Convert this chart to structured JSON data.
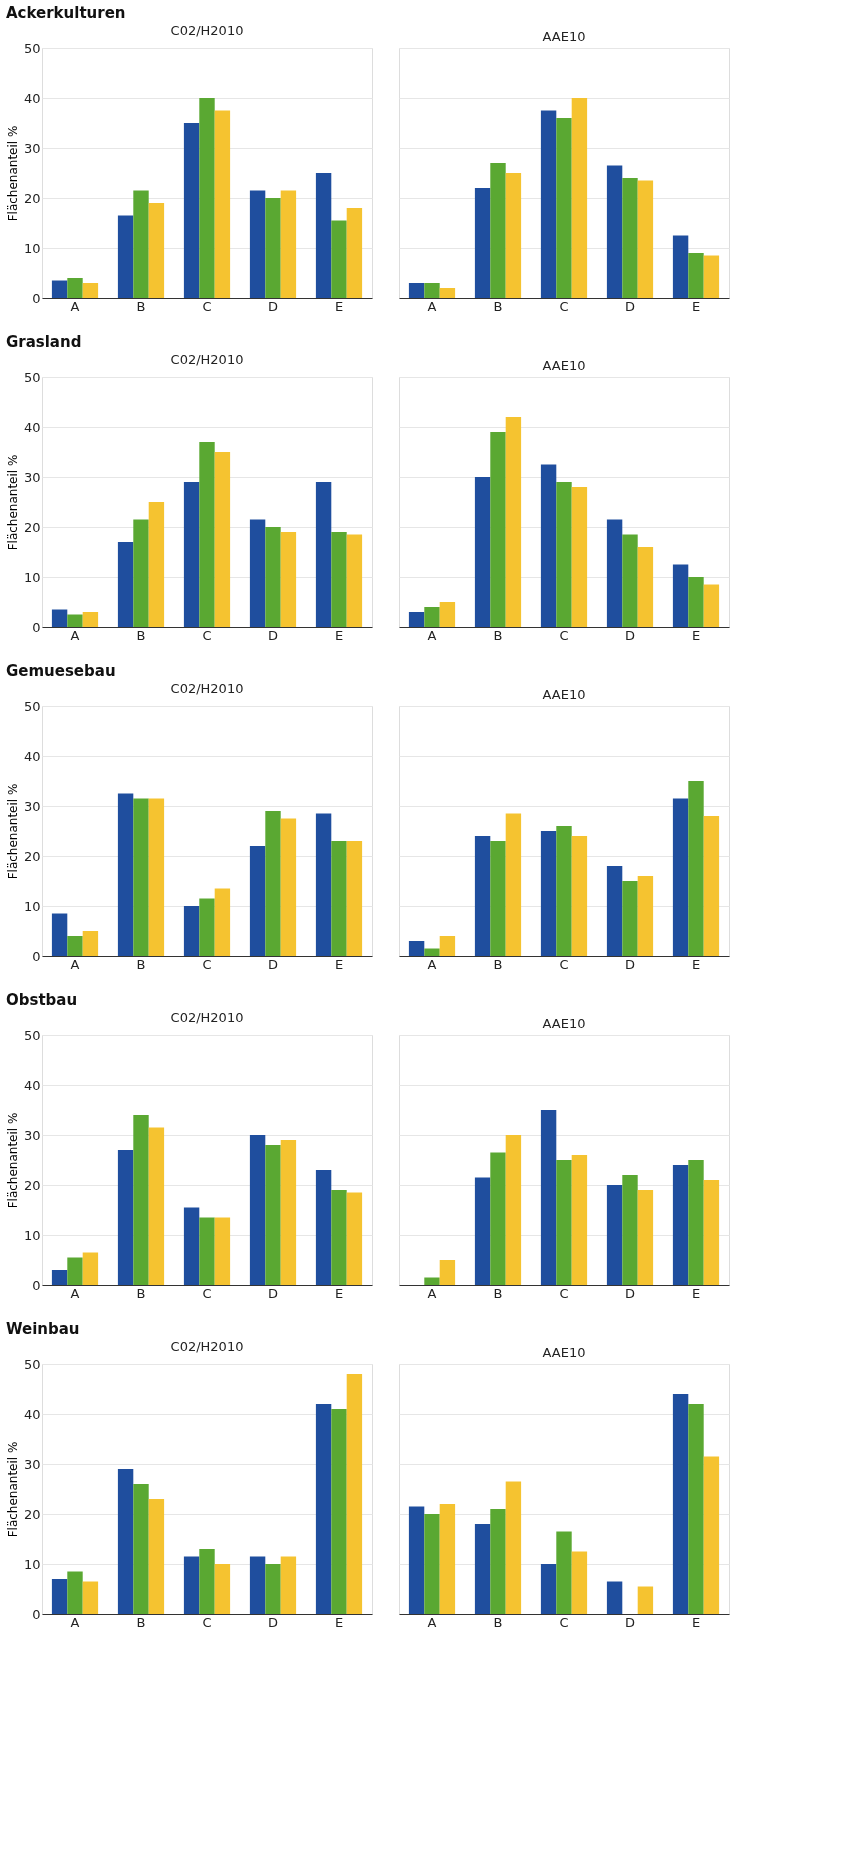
{
  "chart_data": [
    {
      "type": "bar",
      "title": "Ackerkulturen",
      "subtitle": "C02/H2010",
      "ylabel": "Flächenanteil %",
      "categories": [
        "A",
        "B",
        "C",
        "D",
        "E"
      ],
      "ylim": [
        0,
        50
      ],
      "yticks": [
        0,
        10,
        20,
        30,
        40,
        50
      ],
      "grid": "y",
      "legend": false,
      "series": [
        {
          "color": "#1f4e9e",
          "values": [
            3.5,
            16.5,
            35,
            21.5,
            25
          ]
        },
        {
          "color": "#5aa832",
          "values": [
            4,
            21.5,
            40,
            20,
            15.5
          ]
        },
        {
          "color": "#f5c330",
          "values": [
            3,
            19,
            37.5,
            21.5,
            18
          ]
        }
      ]
    },
    {
      "type": "bar",
      "subtitle": "AAE10",
      "categories": [
        "A",
        "B",
        "C",
        "D",
        "E"
      ],
      "ylim": [
        0,
        50
      ],
      "yticks": [
        0,
        10,
        20,
        30,
        40,
        50
      ],
      "grid": "y",
      "legend": false,
      "tick_labels": "x",
      "series": [
        {
          "color": "#1f4e9e",
          "values": [
            3,
            22,
            37.5,
            26.5,
            12.5
          ]
        },
        {
          "color": "#5aa832",
          "values": [
            3,
            27,
            36,
            24,
            9
          ]
        },
        {
          "color": "#f5c330",
          "values": [
            2,
            25,
            40,
            23.5,
            8.5
          ]
        }
      ]
    },
    {
      "type": "bar",
      "title": "Grasland",
      "subtitle": "C02/H2010",
      "ylabel": "Flächenanteil %",
      "categories": [
        "A",
        "B",
        "C",
        "D",
        "E"
      ],
      "ylim": [
        0,
        50
      ],
      "yticks": [
        0,
        10,
        20,
        30,
        40,
        50
      ],
      "grid": "y",
      "legend": false,
      "series": [
        {
          "color": "#1f4e9e",
          "values": [
            3.5,
            17,
            29,
            21.5,
            29
          ]
        },
        {
          "color": "#5aa832",
          "values": [
            2.5,
            21.5,
            37,
            20,
            19
          ]
        },
        {
          "color": "#f5c330",
          "values": [
            3,
            25,
            35,
            19,
            18.5
          ]
        }
      ]
    },
    {
      "type": "bar",
      "subtitle": "AAE10",
      "categories": [
        "A",
        "B",
        "C",
        "D",
        "E"
      ],
      "ylim": [
        0,
        50
      ],
      "yticks": [
        0,
        10,
        20,
        30,
        40,
        50
      ],
      "grid": "y",
      "legend": false,
      "tick_labels": "x",
      "series": [
        {
          "color": "#1f4e9e",
          "values": [
            3,
            30,
            32.5,
            21.5,
            12.5
          ]
        },
        {
          "color": "#5aa832",
          "values": [
            4,
            39,
            29,
            18.5,
            10
          ]
        },
        {
          "color": "#f5c330",
          "values": [
            5,
            42,
            28,
            16,
            8.5
          ]
        }
      ]
    },
    {
      "type": "bar",
      "title": "Gemuesebau",
      "subtitle": "C02/H2010",
      "ylabel": "Flächenanteil %",
      "categories": [
        "A",
        "B",
        "C",
        "D",
        "E"
      ],
      "ylim": [
        0,
        50
      ],
      "yticks": [
        0,
        10,
        20,
        30,
        40,
        50
      ],
      "grid": "y",
      "legend": false,
      "series": [
        {
          "color": "#1f4e9e",
          "values": [
            8.5,
            32.5,
            10,
            22,
            28.5
          ]
        },
        {
          "color": "#5aa832",
          "values": [
            4,
            31.5,
            11.5,
            29,
            23
          ]
        },
        {
          "color": "#f5c330",
          "values": [
            5,
            31.5,
            13.5,
            27.5,
            23
          ]
        }
      ]
    },
    {
      "type": "bar",
      "subtitle": "AAE10",
      "categories": [
        "A",
        "B",
        "C",
        "D",
        "E"
      ],
      "ylim": [
        0,
        50
      ],
      "yticks": [
        0,
        10,
        20,
        30,
        40,
        50
      ],
      "grid": "y",
      "legend": false,
      "tick_labels": "x",
      "series": [
        {
          "color": "#1f4e9e",
          "values": [
            3,
            24,
            25,
            18,
            31.5
          ]
        },
        {
          "color": "#5aa832",
          "values": [
            1.5,
            23,
            26,
            15,
            35
          ]
        },
        {
          "color": "#f5c330",
          "values": [
            4,
            28.5,
            24,
            16,
            28
          ]
        }
      ]
    },
    {
      "type": "bar",
      "title": "Obstbau",
      "subtitle": "C02/H2010",
      "ylabel": "Flächenanteil %",
      "categories": [
        "A",
        "B",
        "C",
        "D",
        "E"
      ],
      "ylim": [
        0,
        50
      ],
      "yticks": [
        0,
        10,
        20,
        30,
        40,
        50
      ],
      "grid": "y",
      "legend": false,
      "series": [
        {
          "color": "#1f4e9e",
          "values": [
            3,
            27,
            15.5,
            30,
            23
          ]
        },
        {
          "color": "#5aa832",
          "values": [
            5.5,
            34,
            13.5,
            28,
            19
          ]
        },
        {
          "color": "#f5c330",
          "values": [
            6.5,
            31.5,
            13.5,
            29,
            18.5
          ]
        }
      ]
    },
    {
      "type": "bar",
      "subtitle": "AAE10",
      "categories": [
        "A",
        "B",
        "C",
        "D",
        "E"
      ],
      "ylim": [
        0,
        50
      ],
      "yticks": [
        0,
        10,
        20,
        30,
        40,
        50
      ],
      "grid": "y",
      "legend": false,
      "tick_labels": "x",
      "series": [
        {
          "color": "#1f4e9e",
          "values": [
            0,
            21.5,
            35,
            20,
            24
          ]
        },
        {
          "color": "#5aa832",
          "values": [
            1.5,
            26.5,
            25,
            22,
            25
          ]
        },
        {
          "color": "#f5c330",
          "values": [
            5,
            30,
            26,
            19,
            21
          ]
        }
      ]
    },
    {
      "type": "bar",
      "title": "Weinbau",
      "subtitle": "C02/H2010",
      "ylabel": "Flächenanteil %",
      "categories": [
        "A",
        "B",
        "C",
        "D",
        "E"
      ],
      "ylim": [
        0,
        50
      ],
      "yticks": [
        0,
        10,
        20,
        30,
        40,
        50
      ],
      "grid": "y",
      "legend": false,
      "series": [
        {
          "color": "#1f4e9e",
          "values": [
            7,
            29,
            11.5,
            11.5,
            42
          ]
        },
        {
          "color": "#5aa832",
          "values": [
            8.5,
            26,
            13,
            10,
            41
          ]
        },
        {
          "color": "#f5c330",
          "values": [
            6.5,
            23,
            10,
            11.5,
            48
          ]
        }
      ]
    },
    {
      "type": "bar",
      "subtitle": "AAE10",
      "categories": [
        "A",
        "B",
        "C",
        "D",
        "E"
      ],
      "ylim": [
        0,
        50
      ],
      "yticks": [
        0,
        10,
        20,
        30,
        40,
        50
      ],
      "grid": "y",
      "legend": false,
      "tick_labels": "x",
      "series": [
        {
          "color": "#1f4e9e",
          "values": [
            21.5,
            18,
            10,
            6.5,
            44
          ]
        },
        {
          "color": "#5aa832",
          "values": [
            20,
            21,
            16.5,
            0,
            42
          ]
        },
        {
          "color": "#f5c330",
          "values": [
            22,
            26.5,
            12.5,
            5.5,
            31.5
          ]
        }
      ]
    }
  ]
}
